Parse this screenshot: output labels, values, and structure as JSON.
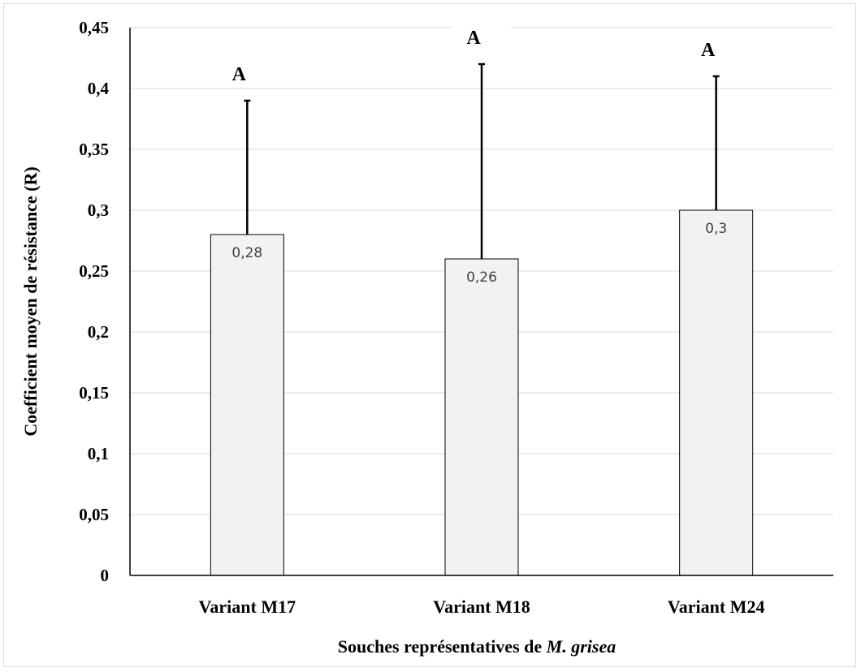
{
  "chart_data": {
    "type": "bar",
    "categories": [
      "Variant M17",
      "Variant M18",
      "Variant M24"
    ],
    "values": [
      0.28,
      0.26,
      0.3
    ],
    "value_labels": [
      "0,28",
      "0,26",
      "0,3"
    ],
    "error_bar_upper": [
      0.39,
      0.42,
      0.41
    ],
    "significance_letters": [
      "A",
      "A",
      "A"
    ],
    "ylim": [
      0,
      0.45
    ],
    "yticks": [
      0,
      0.05,
      0.1,
      0.15,
      0.2,
      0.25,
      0.3,
      0.35,
      0.4,
      0.45
    ],
    "ytick_labels": [
      "0",
      "0,05",
      "0,1",
      "0,15",
      "0,2",
      "0,25",
      "0,3",
      "0,35",
      "0,4",
      "0,45"
    ],
    "ylabel": "Coefficient moyen de résistance (R)",
    "xlabel_prefix": "Souches représentatives de ",
    "xlabel_italic": "M. grisea",
    "grid": true,
    "colors": {
      "bar_fill": "#f2f2f2",
      "bar_stroke": "#000000",
      "grid": "#d9d9d9"
    }
  }
}
